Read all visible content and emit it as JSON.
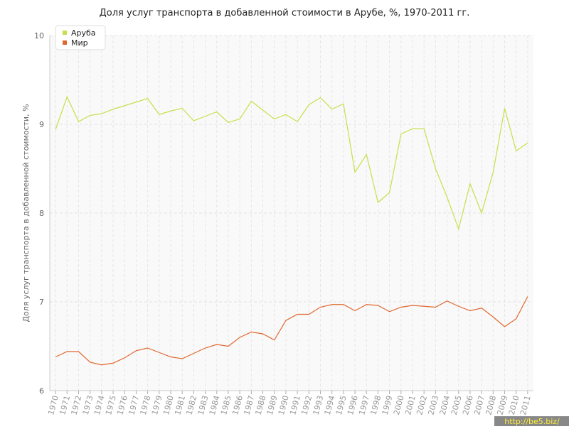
{
  "chart_data": {
    "type": "line",
    "title": "Доля услуг транспорта в добавленной стоимости в Арубе, %, 1970-2011 гг.",
    "y_label": "Доля услуг транспорта в добавленной стоимости, %",
    "x": [
      1970,
      1971,
      1972,
      1973,
      1974,
      1975,
      1976,
      1977,
      1978,
      1979,
      1980,
      1981,
      1982,
      1983,
      1984,
      1985,
      1986,
      1987,
      1988,
      1989,
      1990,
      1991,
      1992,
      1993,
      1994,
      1995,
      1996,
      1997,
      1998,
      1999,
      2000,
      2001,
      2002,
      2003,
      2004,
      2005,
      2006,
      2007,
      2008,
      2009,
      2010,
      2011
    ],
    "series": [
      {
        "name": "Аруба",
        "color": "#c5e04a",
        "values": [
          8.94,
          9.31,
          9.03,
          9.1,
          9.12,
          9.17,
          9.21,
          9.25,
          9.29,
          9.11,
          9.15,
          9.18,
          9.04,
          9.09,
          9.14,
          9.02,
          9.06,
          9.26,
          9.16,
          9.06,
          9.11,
          9.03,
          9.22,
          9.3,
          9.17,
          9.23,
          8.46,
          8.66,
          8.12,
          8.23,
          8.89,
          8.95,
          8.95,
          8.5,
          8.18,
          7.82,
          8.33,
          8.0,
          8.46,
          9.18,
          8.7,
          8.79
        ]
      },
      {
        "name": "Мир",
        "color": "#e0672e",
        "values": [
          6.38,
          6.44,
          6.44,
          6.32,
          6.29,
          6.31,
          6.37,
          6.45,
          6.48,
          6.43,
          6.38,
          6.36,
          6.42,
          6.48,
          6.52,
          6.5,
          6.6,
          6.66,
          6.64,
          6.57,
          6.79,
          6.86,
          6.86,
          6.94,
          6.97,
          6.97,
          6.9,
          6.97,
          6.96,
          6.89,
          6.94,
          6.96,
          6.95,
          6.94,
          7.01,
          6.95,
          6.9,
          6.93,
          6.83,
          6.72,
          6.81,
          7.06
        ]
      }
    ],
    "xlim": [
      1969.5,
      2011.5
    ],
    "xticks": [
      1970,
      1971,
      1972,
      1973,
      1974,
      1975,
      1976,
      1977,
      1978,
      1979,
      1980,
      1981,
      1982,
      1983,
      1984,
      1985,
      1986,
      1987,
      1988,
      1989,
      1990,
      1991,
      1992,
      1993,
      1994,
      1995,
      1996,
      1997,
      1998,
      1999,
      2000,
      2001,
      2002,
      2003,
      2004,
      2005,
      2006,
      2007,
      2008,
      2009,
      2010,
      2011
    ],
    "ylim": [
      6,
      10
    ],
    "yticks": [
      6,
      7,
      8,
      9,
      10
    ],
    "grid": true,
    "legend": "top-left",
    "watermark": "http://be5.biz/"
  }
}
